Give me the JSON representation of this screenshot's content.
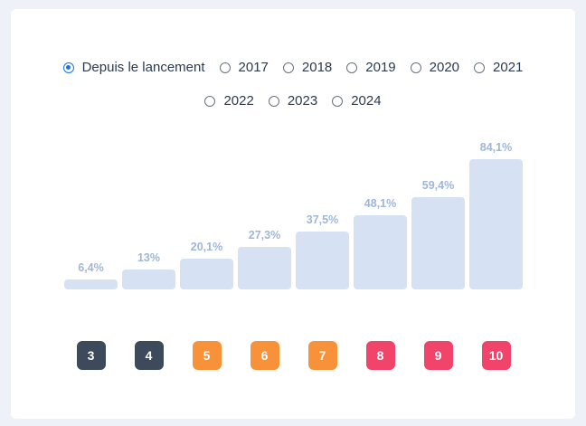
{
  "period_options": [
    {
      "label": "Depuis le lancement",
      "checked": true
    },
    {
      "label": "2017",
      "checked": false
    },
    {
      "label": "2018",
      "checked": false
    },
    {
      "label": "2019",
      "checked": false
    },
    {
      "label": "2020",
      "checked": false
    },
    {
      "label": "2021",
      "checked": false
    },
    {
      "label": "2022",
      "checked": false
    },
    {
      "label": "2023",
      "checked": false
    },
    {
      "label": "2024",
      "checked": false
    }
  ],
  "chart_data": {
    "type": "bar",
    "categories": [
      "3",
      "4",
      "5",
      "6",
      "7",
      "8",
      "9",
      "10"
    ],
    "values": [
      6.4,
      13,
      20.1,
      27.3,
      37.5,
      48.1,
      59.4,
      84.1
    ],
    "value_labels": [
      "6,4%",
      "13%",
      "20,1%",
      "27,3%",
      "37,5%",
      "48,1%",
      "59,4%",
      "84,1%"
    ],
    "bar_color": "#d6e2f3",
    "badge_colors": [
      "#3d4a5c",
      "#3d4a5c",
      "#f7913a",
      "#f7913a",
      "#f7913a",
      "#f0446a",
      "#f0446a",
      "#f0446a"
    ]
  }
}
